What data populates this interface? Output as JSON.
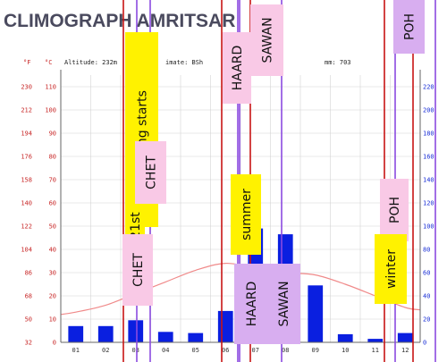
{
  "chart_data": {
    "type": "bar",
    "title": "CLIMOGRAPH AMRITSAR",
    "info": {
      "altitude": "Altitude: 232m",
      "climate": "imate: BSh",
      "precipitation": "mm: 703"
    },
    "units": {
      "fahrenheit": "°F",
      "celsius": "°C"
    },
    "categories": [
      "01",
      "02",
      "03",
      "04",
      "05",
      "06",
      "07",
      "08",
      "09",
      "10",
      "11",
      "12"
    ],
    "series": [
      {
        "type": "bar",
        "values": [
          14,
          14,
          19,
          9,
          8,
          27,
          98,
          93,
          49,
          7,
          3,
          8
        ]
      },
      {
        "type": "line",
        "values": [
          13,
          16,
          21,
          26,
          31,
          34,
          32,
          30,
          29,
          25,
          20,
          15
        ]
      }
    ],
    "y_precip_ticks": [
      "0",
      "20",
      "40",
      "60",
      "80",
      "100",
      "120",
      "140",
      "160",
      "180",
      "200",
      "220"
    ],
    "y_celsius_ticks": [
      "0",
      "10",
      "20",
      "30",
      "40",
      "50",
      "60",
      "70",
      "80",
      "90",
      "100",
      "110"
    ],
    "y_fahrenheit_ticks": [
      "32",
      "50",
      "68",
      "86",
      "104",
      "122",
      "140",
      "158",
      "176",
      "194",
      "212",
      "230"
    ],
    "ylim_precip": [
      0,
      230
    ],
    "ylim_celsius": [
      0,
      115
    ],
    "annotations": [
      {
        "text": "spring starts",
        "bg": "#fff200",
        "vertical": true
      },
      {
        "text": "21st",
        "bg": "#fff200",
        "vertical": true
      },
      {
        "text": "CHET",
        "bg": "#f9c9e6",
        "vertical": true
      },
      {
        "text": "CHET",
        "bg": "#f9c9e6",
        "vertical": true
      },
      {
        "text": "HAARD",
        "bg": "#f9c9e6",
        "vertical": true
      },
      {
        "text": "SAWAN",
        "bg": "#f9c9e6",
        "vertical": true
      },
      {
        "text": "summer",
        "bg": "#fff200",
        "vertical": true
      },
      {
        "text": "HAARD",
        "bg": "#d8aef0",
        "vertical": true
      },
      {
        "text": "SAWAN",
        "bg": "#d8aef0",
        "vertical": true
      },
      {
        "text": "POH",
        "bg": "#d8aef0",
        "vertical": true
      },
      {
        "text": "POH",
        "bg": "#f9c9e6",
        "vertical": true
      },
      {
        "text": "winter",
        "bg": "#fff200",
        "vertical": true
      }
    ],
    "colors": {
      "bar": "#0a1fe0",
      "temperature_line": "#f08a8a",
      "red_marker": "#c81414",
      "purple_marker": "#8a4ae0",
      "grid": "#d4d4d4",
      "title": "#4a4a5e"
    },
    "grid": true
  }
}
